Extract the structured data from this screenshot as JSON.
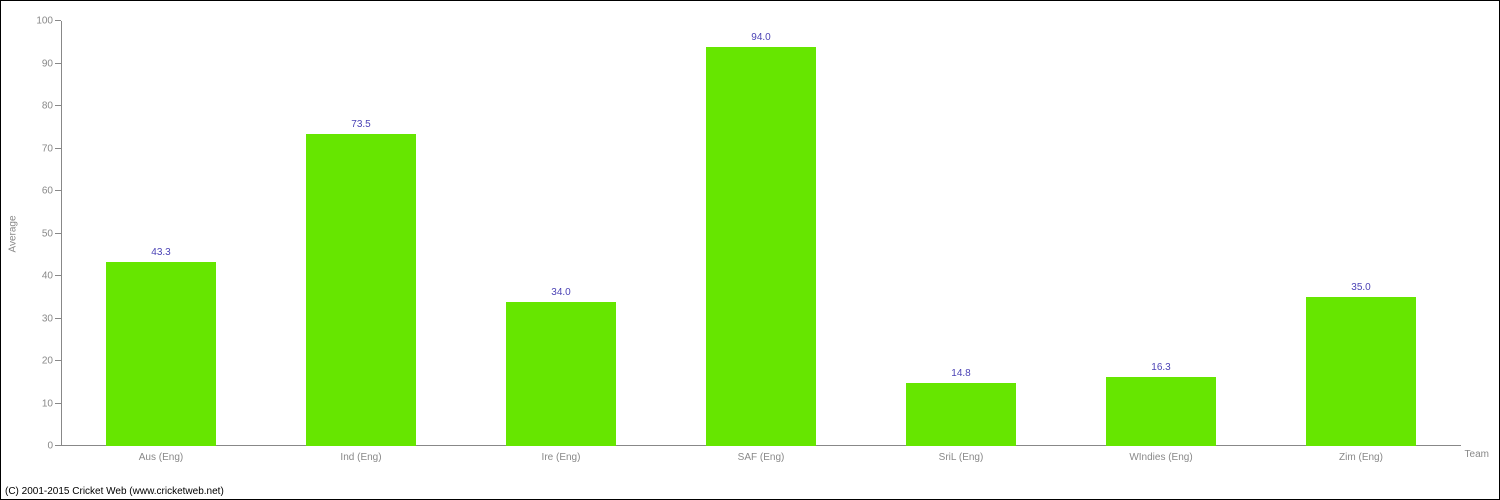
{
  "chart": {
    "type": "bar",
    "y_axis_title": "Average",
    "x_axis_title": "Team",
    "ylim": [
      0,
      100
    ],
    "ytick_step": 10,
    "yticks": [
      0,
      10,
      20,
      30,
      40,
      50,
      60,
      70,
      80,
      90,
      100
    ],
    "categories": [
      "Aus (Eng)",
      "Ind (Eng)",
      "Ire (Eng)",
      "SAF (Eng)",
      "SriL (Eng)",
      "WIndies (Eng)",
      "Zim (Eng)"
    ],
    "values": [
      43.3,
      73.5,
      34.0,
      94.0,
      14.8,
      16.3,
      35.0
    ],
    "value_labels": [
      "43.3",
      "73.5",
      "34.0",
      "94.0",
      "14.8",
      "16.3",
      "35.0"
    ],
    "bar_color": "#66e600",
    "axis_color": "#888888",
    "tick_label_color": "#888888",
    "value_label_color": "#4b42b5",
    "background_color": "#ffffff",
    "border_color": "#000000",
    "bar_width_ratio": 0.55,
    "tick_fontsize": 10,
    "value_label_fontsize": 10,
    "axis_title_fontsize": 10
  },
  "copyright": "(C) 2001-2015 Cricket Web (www.cricketweb.net)"
}
